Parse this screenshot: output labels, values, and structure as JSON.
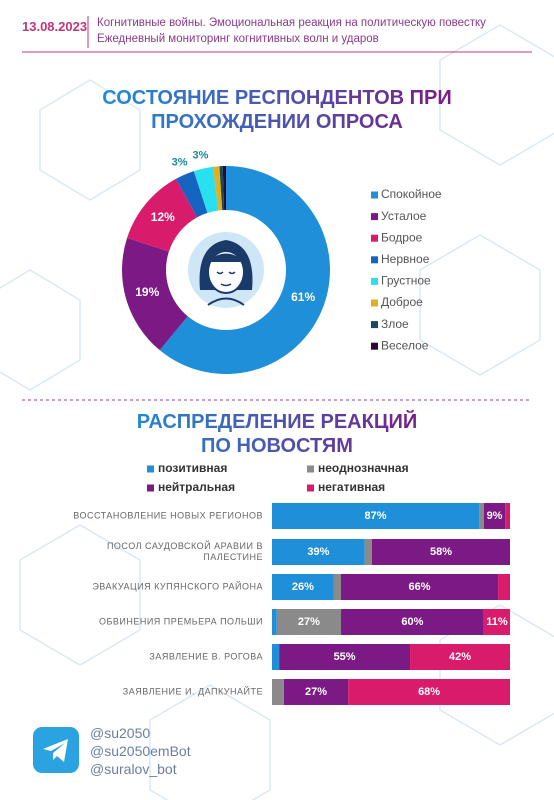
{
  "header": {
    "date": "13.08.2023",
    "line1": "Когнитивные войны. Эмоциональная реакция на политическую повестку",
    "line2": "Ежедневный мониторинг когнитивных волн и ударов"
  },
  "chart_data": [
    {
      "type": "pie",
      "donut": true,
      "title": "СОСТОЯНИЕ РЕСПОНДЕНТОВ ПРИ ПРОХОЖДЕНИИ ОПРОСА",
      "categories": [
        "Спокойное",
        "Усталое",
        "Бодрое",
        "Нервное",
        "Грустное",
        "Доброе",
        "Злое",
        "Веселое"
      ],
      "values": [
        61,
        19,
        12,
        3,
        3,
        1,
        0.5,
        0.5
      ],
      "value_labels": [
        "61%",
        "19%",
        "12%",
        "3%",
        "3%",
        null,
        null,
        null
      ],
      "colors": [
        "#1e8fd8",
        "#7b1a84",
        "#d81b6a",
        "#1565c0",
        "#29e0f0",
        "#e0b020",
        "#1a4a5a",
        "#2a0a30"
      ],
      "legend": "right"
    },
    {
      "type": "stacked-bar",
      "orientation": "horizontal",
      "title": "РАСПРЕДЕЛЕНИЕ РЕАКЦИЙ ПО НОВОСТЯМ",
      "categories": [
        "ВОССТАНОВЛЕНИЕ НОВЫХ РЕГИОНОВ",
        "ПОСОЛ САУДОВСКОЙ АРАВИИ В ПАЛЕСТИНЕ",
        "ЭВАКУАЦИЯ КУПЯНСКОГО РАЙОНА",
        "ОБВИНЕНИЯ ПРЕМЬЕРА ПОЛЬШИ",
        "ЗАЯВЛЕНИЕ В. РОГОВА",
        "ЗАЯВЛЕНИЕ И. ДАПКУНАЙТЕ"
      ],
      "xlim": [
        0,
        100
      ],
      "legend": "top",
      "series": [
        {
          "name": "позитивная",
          "color": "#1e8fd8",
          "values": [
            87,
            39,
            26,
            2,
            3,
            0
          ],
          "value_labels": [
            "87%",
            "39%",
            "26%",
            null,
            null,
            null
          ]
        },
        {
          "name": "неоднозначная",
          "color": "#8a8a8a",
          "values": [
            2,
            3,
            3,
            27,
            0,
            5
          ],
          "value_labels": [
            null,
            null,
            null,
            "27%",
            null,
            null
          ]
        },
        {
          "name": "нейтральная",
          "color": "#7b1a84",
          "values": [
            9,
            58,
            66,
            60,
            55,
            27
          ],
          "value_labels": [
            "9%",
            "58%",
            "66%",
            "60%",
            "55%",
            "27%"
          ]
        },
        {
          "name": "негативная",
          "color": "#d81b6a",
          "values": [
            2,
            0,
            5,
            11,
            42,
            68
          ],
          "value_labels": [
            null,
            null,
            null,
            "11%",
            "42%",
            "68%"
          ]
        }
      ]
    }
  ],
  "footer": {
    "handles": [
      "@su2050",
      "@su2050emBot",
      "@suralov_bot"
    ]
  }
}
